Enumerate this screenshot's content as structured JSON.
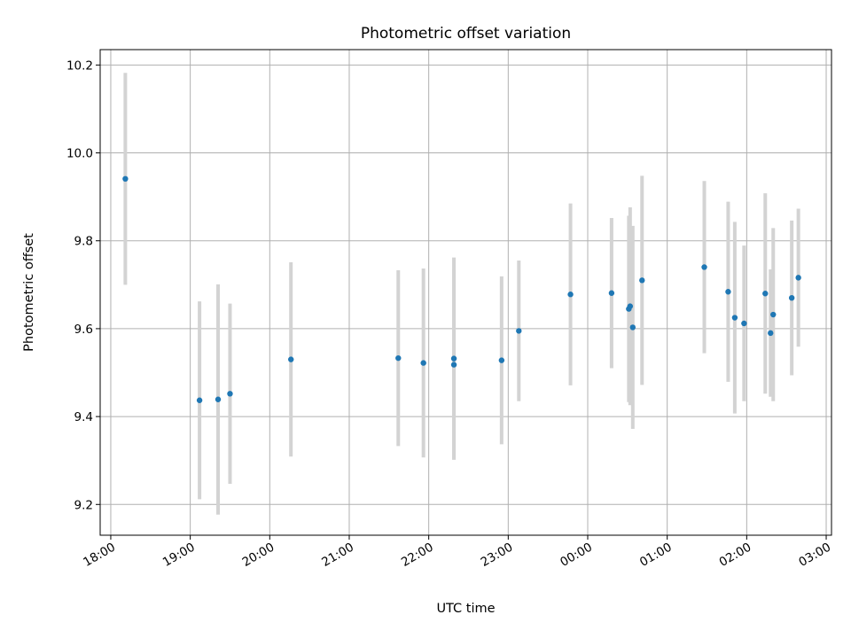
{
  "chart_data": {
    "type": "scatter",
    "title": "Photometric offset variation",
    "xlabel": "UTC time",
    "ylabel": "Photometric offset",
    "x_unit": "time of day (UTC), spanning midnight",
    "xlim": [
      "17:52",
      "03:04"
    ],
    "ylim": [
      9.13,
      10.235
    ],
    "grid": true,
    "legend": "none",
    "x_ticks": [
      "18:00",
      "19:00",
      "20:00",
      "21:00",
      "22:00",
      "23:00",
      "00:00",
      "01:00",
      "02:00",
      "03:00"
    ],
    "y_ticks": [
      9.2,
      9.4,
      9.6,
      9.8,
      10.0,
      10.2
    ],
    "y_tick_labels": [
      "9.2",
      "9.4",
      "9.6",
      "9.8",
      "10.0",
      "10.2"
    ],
    "colors": {
      "point": "#1f77b4",
      "errorbar": "#d3d3d3",
      "grid": "#b0b0b0"
    },
    "points": [
      {
        "x": "18:11",
        "y": 9.941,
        "err": 0.241
      },
      {
        "x": "19:07",
        "y": 9.437,
        "err": 0.225
      },
      {
        "x": "19:21",
        "y": 9.439,
        "err": 0.262
      },
      {
        "x": "19:30",
        "y": 9.452,
        "err": 0.205
      },
      {
        "x": "20:16",
        "y": 9.53,
        "err": 0.221
      },
      {
        "x": "21:37",
        "y": 9.533,
        "err": 0.2
      },
      {
        "x": "21:56",
        "y": 9.522,
        "err": 0.215
      },
      {
        "x": "22:19",
        "y": 9.518,
        "err": 0.216
      },
      {
        "x": "22:19",
        "y": 9.532,
        "err": 0.23
      },
      {
        "x": "22:55",
        "y": 9.528,
        "err": 0.191
      },
      {
        "x": "23:08",
        "y": 9.595,
        "err": 0.16
      },
      {
        "x": "23:47",
        "y": 9.678,
        "err": 0.207
      },
      {
        "x": "00:18",
        "y": 9.681,
        "err": 0.171
      },
      {
        "x": "00:31",
        "y": 9.645,
        "err": 0.212
      },
      {
        "x": "00:32",
        "y": 9.651,
        "err": 0.225
      },
      {
        "x": "00:34",
        "y": 9.603,
        "err": 0.231
      },
      {
        "x": "00:41",
        "y": 9.71,
        "err": 0.238
      },
      {
        "x": "01:28",
        "y": 9.74,
        "err": 0.196
      },
      {
        "x": "01:46",
        "y": 9.684,
        "err": 0.205
      },
      {
        "x": "01:51",
        "y": 9.625,
        "err": 0.218
      },
      {
        "x": "01:58",
        "y": 9.612,
        "err": 0.177
      },
      {
        "x": "02:14",
        "y": 9.68,
        "err": 0.228
      },
      {
        "x": "02:18",
        "y": 9.59,
        "err": 0.145
      },
      {
        "x": "02:20",
        "y": 9.632,
        "err": 0.197
      },
      {
        "x": "02:34",
        "y": 9.67,
        "err": 0.176
      },
      {
        "x": "02:39",
        "y": 9.716,
        "err": 0.157
      }
    ]
  }
}
